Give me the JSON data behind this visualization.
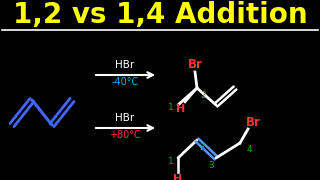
{
  "bg_color": "#000000",
  "title": "1,2 vs 1,4 Addition",
  "title_color": "#FFFF00",
  "title_fontsize": 20,
  "separator_color": "#FFFFFF",
  "arrow_color": "#FFFFFF",
  "label_color": "#FFFFFF",
  "hbr_texts": [
    "HBr",
    "HBr"
  ],
  "temp_top": "-40°C",
  "temp_bot": "+80°C",
  "temp_top_color": "#00AAFF",
  "temp_bot_color": "#FF3333",
  "butadiene_color": "#4466FF",
  "product_bond_color": "#FFFFFF",
  "double_bond_color_top": "#FFFFFF",
  "double_bond_color_bot": "#5599FF",
  "br_color": "#FF3333",
  "num_color_green": "#00BB00",
  "h_color": "#FF3333"
}
